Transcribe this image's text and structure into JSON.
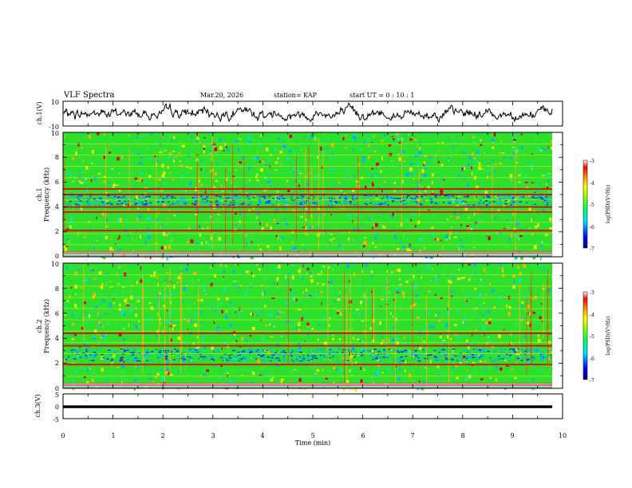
{
  "header": {
    "title": "VLF Spectra",
    "date": "Mar.20, 2026",
    "station": "station= KAP",
    "start_ut": "start  UT =   0  : 10 : 1"
  },
  "chart_data": [
    {
      "type": "line",
      "panel": "ch1-waveform",
      "ylabel": "ch.1(V)",
      "ylim": [
        -10,
        10
      ],
      "yticks": [
        "10",
        "-10"
      ],
      "xlim": [
        0,
        10
      ],
      "series": [
        {
          "name": "ch.1 voltage",
          "mean": 0,
          "amplitude": 10,
          "noisy": true
        }
      ]
    },
    {
      "type": "heatmap",
      "panel": "ch1-spectrogram",
      "ylabel": "ch.1\nFrequency (kHz)",
      "ylabel_line1": "ch.1",
      "ylabel_line2": "Frequency (kHz)",
      "ylim": [
        0,
        10
      ],
      "yticks": [
        "0",
        "2",
        "4",
        "6",
        "8",
        "10"
      ],
      "xlim": [
        0,
        10
      ],
      "strong_bands_khz": [
        0.3,
        2.1,
        3.6,
        4.0,
        5.0,
        5.45
      ],
      "weak_band_khz": [
        4.2,
        5.0
      ],
      "colorbar": {
        "label": "log(PSD)(V²/Hz)",
        "range": [
          -7,
          -3
        ],
        "ticks": [
          "-3",
          "-4",
          "-5",
          "-6",
          "-7"
        ]
      }
    },
    {
      "type": "heatmap",
      "panel": "ch2-spectrogram",
      "ylabel": "ch.2\nFrequency (kHz)",
      "ylabel_line1": "ch.2",
      "ylabel_line2": "Frequency (kHz)",
      "ylim": [
        0,
        10
      ],
      "yticks": [
        "0",
        "2",
        "4",
        "6",
        "8",
        "10"
      ],
      "xlim": [
        0,
        10
      ],
      "strong_bands_khz": [
        0.25,
        1.9,
        3.4,
        4.4
      ],
      "weak_band_khz": [
        2.2,
        3.2
      ],
      "colorbar": {
        "label": "log(PSD)(V²/Hz)",
        "range": [
          -7,
          -3
        ],
        "ticks": [
          "-3",
          "-4",
          "-5",
          "-6",
          "-7"
        ]
      }
    },
    {
      "type": "line",
      "panel": "ch3-waveform",
      "ylabel": "ch.3(V)",
      "ylim": [
        -5,
        5
      ],
      "yticks": [
        "5",
        "0",
        "-5"
      ],
      "xlim": [
        0,
        10
      ],
      "xlabel": "Time (min)",
      "xticks": [
        "0",
        "1",
        "2",
        "3",
        "4",
        "5",
        "6",
        "7",
        "8",
        "9",
        "10"
      ],
      "series": [
        {
          "name": "ch.3 voltage",
          "level": -0.2,
          "band_halfwidth": 0.55
        }
      ]
    }
  ]
}
